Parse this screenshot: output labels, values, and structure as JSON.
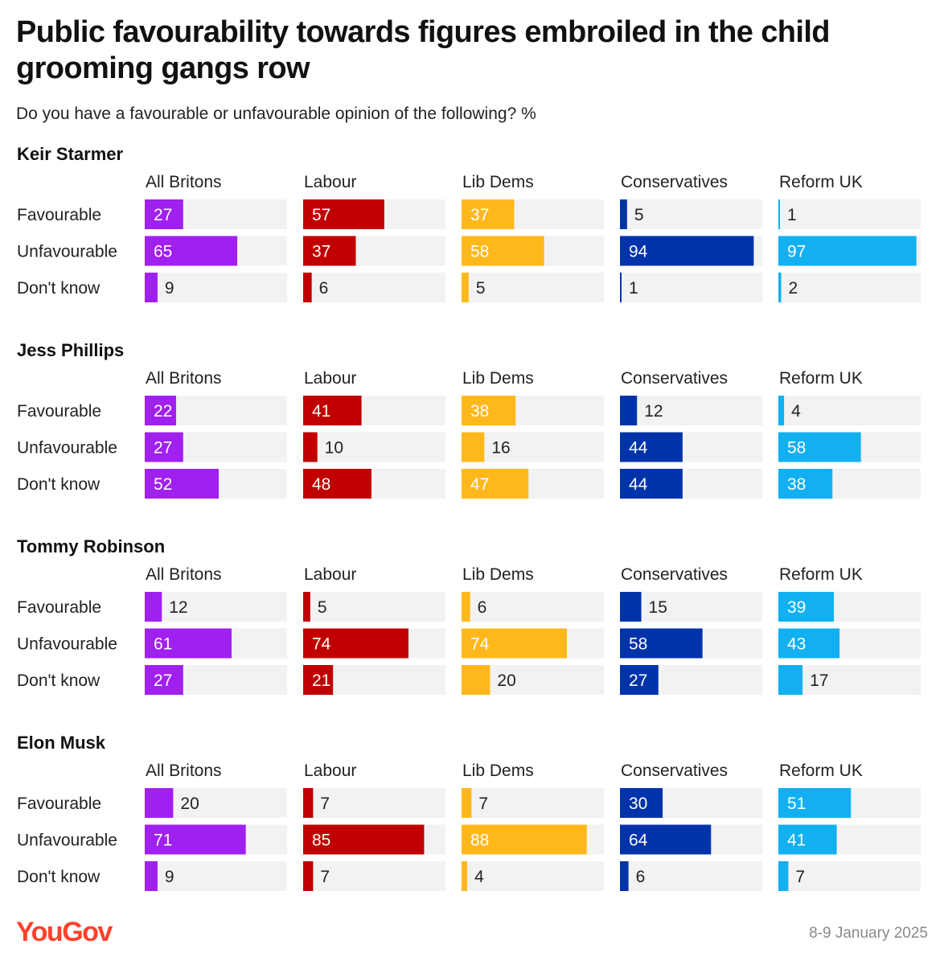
{
  "title": "Public favourability towards figures embroiled in the child grooming gangs row",
  "subtitle": "Do you have a favourable or unfavourable opinion of the following? %",
  "brand": "YouGov",
  "date": "8-9 January 2025",
  "colors": {
    "All Britons": "#a020f0",
    "Labour": "#c00000",
    "Lib Dems": "#ffb81c",
    "Conservatives": "#0033aa",
    "Reform UK": "#12b0f0",
    "track": "#f2f2f2",
    "brand": "#ff412c"
  },
  "chart_data": {
    "type": "bar",
    "xlim": [
      0,
      100
    ],
    "groups": [
      "All Britons",
      "Labour",
      "Lib Dems",
      "Conservatives",
      "Reform UK"
    ],
    "categories": [
      "Favourable",
      "Unfavourable",
      "Don't know"
    ],
    "panels": [
      {
        "name": "Keir Starmer",
        "series": [
          {
            "name": "All Britons",
            "values": [
              27,
              65,
              9
            ]
          },
          {
            "name": "Labour",
            "values": [
              57,
              37,
              6
            ]
          },
          {
            "name": "Lib Dems",
            "values": [
              37,
              58,
              5
            ]
          },
          {
            "name": "Conservatives",
            "values": [
              5,
              94,
              1
            ]
          },
          {
            "name": "Reform UK",
            "values": [
              1,
              97,
              2
            ]
          }
        ]
      },
      {
        "name": "Jess Phillips",
        "series": [
          {
            "name": "All Britons",
            "values": [
              22,
              27,
              52
            ]
          },
          {
            "name": "Labour",
            "values": [
              41,
              10,
              48
            ]
          },
          {
            "name": "Lib Dems",
            "values": [
              38,
              16,
              47
            ]
          },
          {
            "name": "Conservatives",
            "values": [
              12,
              44,
              44
            ]
          },
          {
            "name": "Reform UK",
            "values": [
              4,
              58,
              38
            ]
          }
        ]
      },
      {
        "name": "Tommy Robinson",
        "series": [
          {
            "name": "All Britons",
            "values": [
              12,
              61,
              27
            ]
          },
          {
            "name": "Labour",
            "values": [
              5,
              74,
              21
            ]
          },
          {
            "name": "Lib Dems",
            "values": [
              6,
              74,
              20
            ]
          },
          {
            "name": "Conservatives",
            "values": [
              15,
              58,
              27
            ]
          },
          {
            "name": "Reform UK",
            "values": [
              39,
              43,
              17
            ]
          }
        ]
      },
      {
        "name": "Elon Musk",
        "series": [
          {
            "name": "All Britons",
            "values": [
              20,
              71,
              9
            ]
          },
          {
            "name": "Labour",
            "values": [
              7,
              85,
              7
            ]
          },
          {
            "name": "Lib Dems",
            "values": [
              7,
              88,
              4
            ]
          },
          {
            "name": "Conservatives",
            "values": [
              30,
              64,
              6
            ]
          },
          {
            "name": "Reform UK",
            "values": [
              51,
              41,
              7
            ]
          }
        ]
      }
    ]
  }
}
